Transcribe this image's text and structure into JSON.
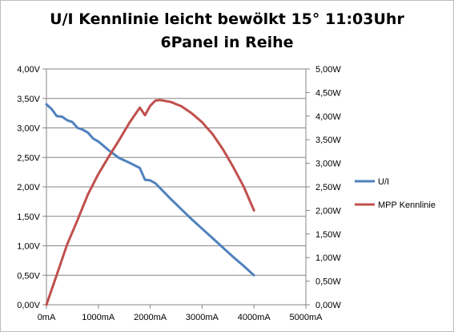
{
  "chart_data": {
    "type": "line",
    "title": [
      "U/I Kennlinie leicht bewölkt 15° 11:03Uhr",
      "6Panel in Reihe"
    ],
    "x_ticks": [
      "0mA",
      "1000mA",
      "2000mA",
      "3000mA",
      "4000mA",
      "5000mA"
    ],
    "xlim": [
      0,
      5000
    ],
    "y_left_ticks": [
      "0,00V",
      "0,50V",
      "1,00V",
      "1,50V",
      "2,00V",
      "2,50V",
      "3,00V",
      "3,50V",
      "4,00V"
    ],
    "y_left_lim": [
      0,
      4
    ],
    "y_right_ticks": [
      "0,00W",
      "0,50W",
      "1,00W",
      "1,50W",
      "2,00W",
      "2,50W",
      "3,00W",
      "3,50W",
      "4,00W",
      "4,50W",
      "5,00W"
    ],
    "y_right_lim": [
      0,
      5
    ],
    "grid": "horizontal",
    "legend_position": "right",
    "series": [
      {
        "name": "U/I",
        "axis": "left",
        "color": "#4F81BD",
        "x": [
          0,
          100,
          200,
          300,
          400,
          500,
          600,
          700,
          800,
          900,
          1000,
          1200,
          1400,
          1600,
          1800,
          1900,
          2000,
          2100,
          2200,
          2400,
          2600,
          2800,
          3000,
          3200,
          3400,
          3600,
          3800,
          4000
        ],
        "y": [
          3.4,
          3.32,
          3.2,
          3.19,
          3.13,
          3.1,
          3.0,
          2.97,
          2.92,
          2.82,
          2.77,
          2.62,
          2.49,
          2.41,
          2.32,
          2.12,
          2.11,
          2.06,
          1.97,
          1.79,
          1.62,
          1.45,
          1.29,
          1.13,
          0.97,
          0.81,
          0.66,
          0.5
        ]
      },
      {
        "name": "MPP Kennlinie",
        "axis": "right",
        "color": "#C0504D",
        "x": [
          0,
          200,
          400,
          600,
          800,
          1000,
          1200,
          1400,
          1600,
          1800,
          1900,
          2000,
          2100,
          2200,
          2400,
          2600,
          2800,
          3000,
          3200,
          3400,
          3600,
          3800,
          4000
        ],
        "y": [
          0.0,
          0.64,
          1.28,
          1.8,
          2.34,
          2.77,
          3.14,
          3.49,
          3.86,
          4.18,
          4.02,
          4.22,
          4.33,
          4.34,
          4.3,
          4.21,
          4.06,
          3.87,
          3.62,
          3.3,
          2.92,
          2.51,
          2.0
        ]
      }
    ]
  }
}
